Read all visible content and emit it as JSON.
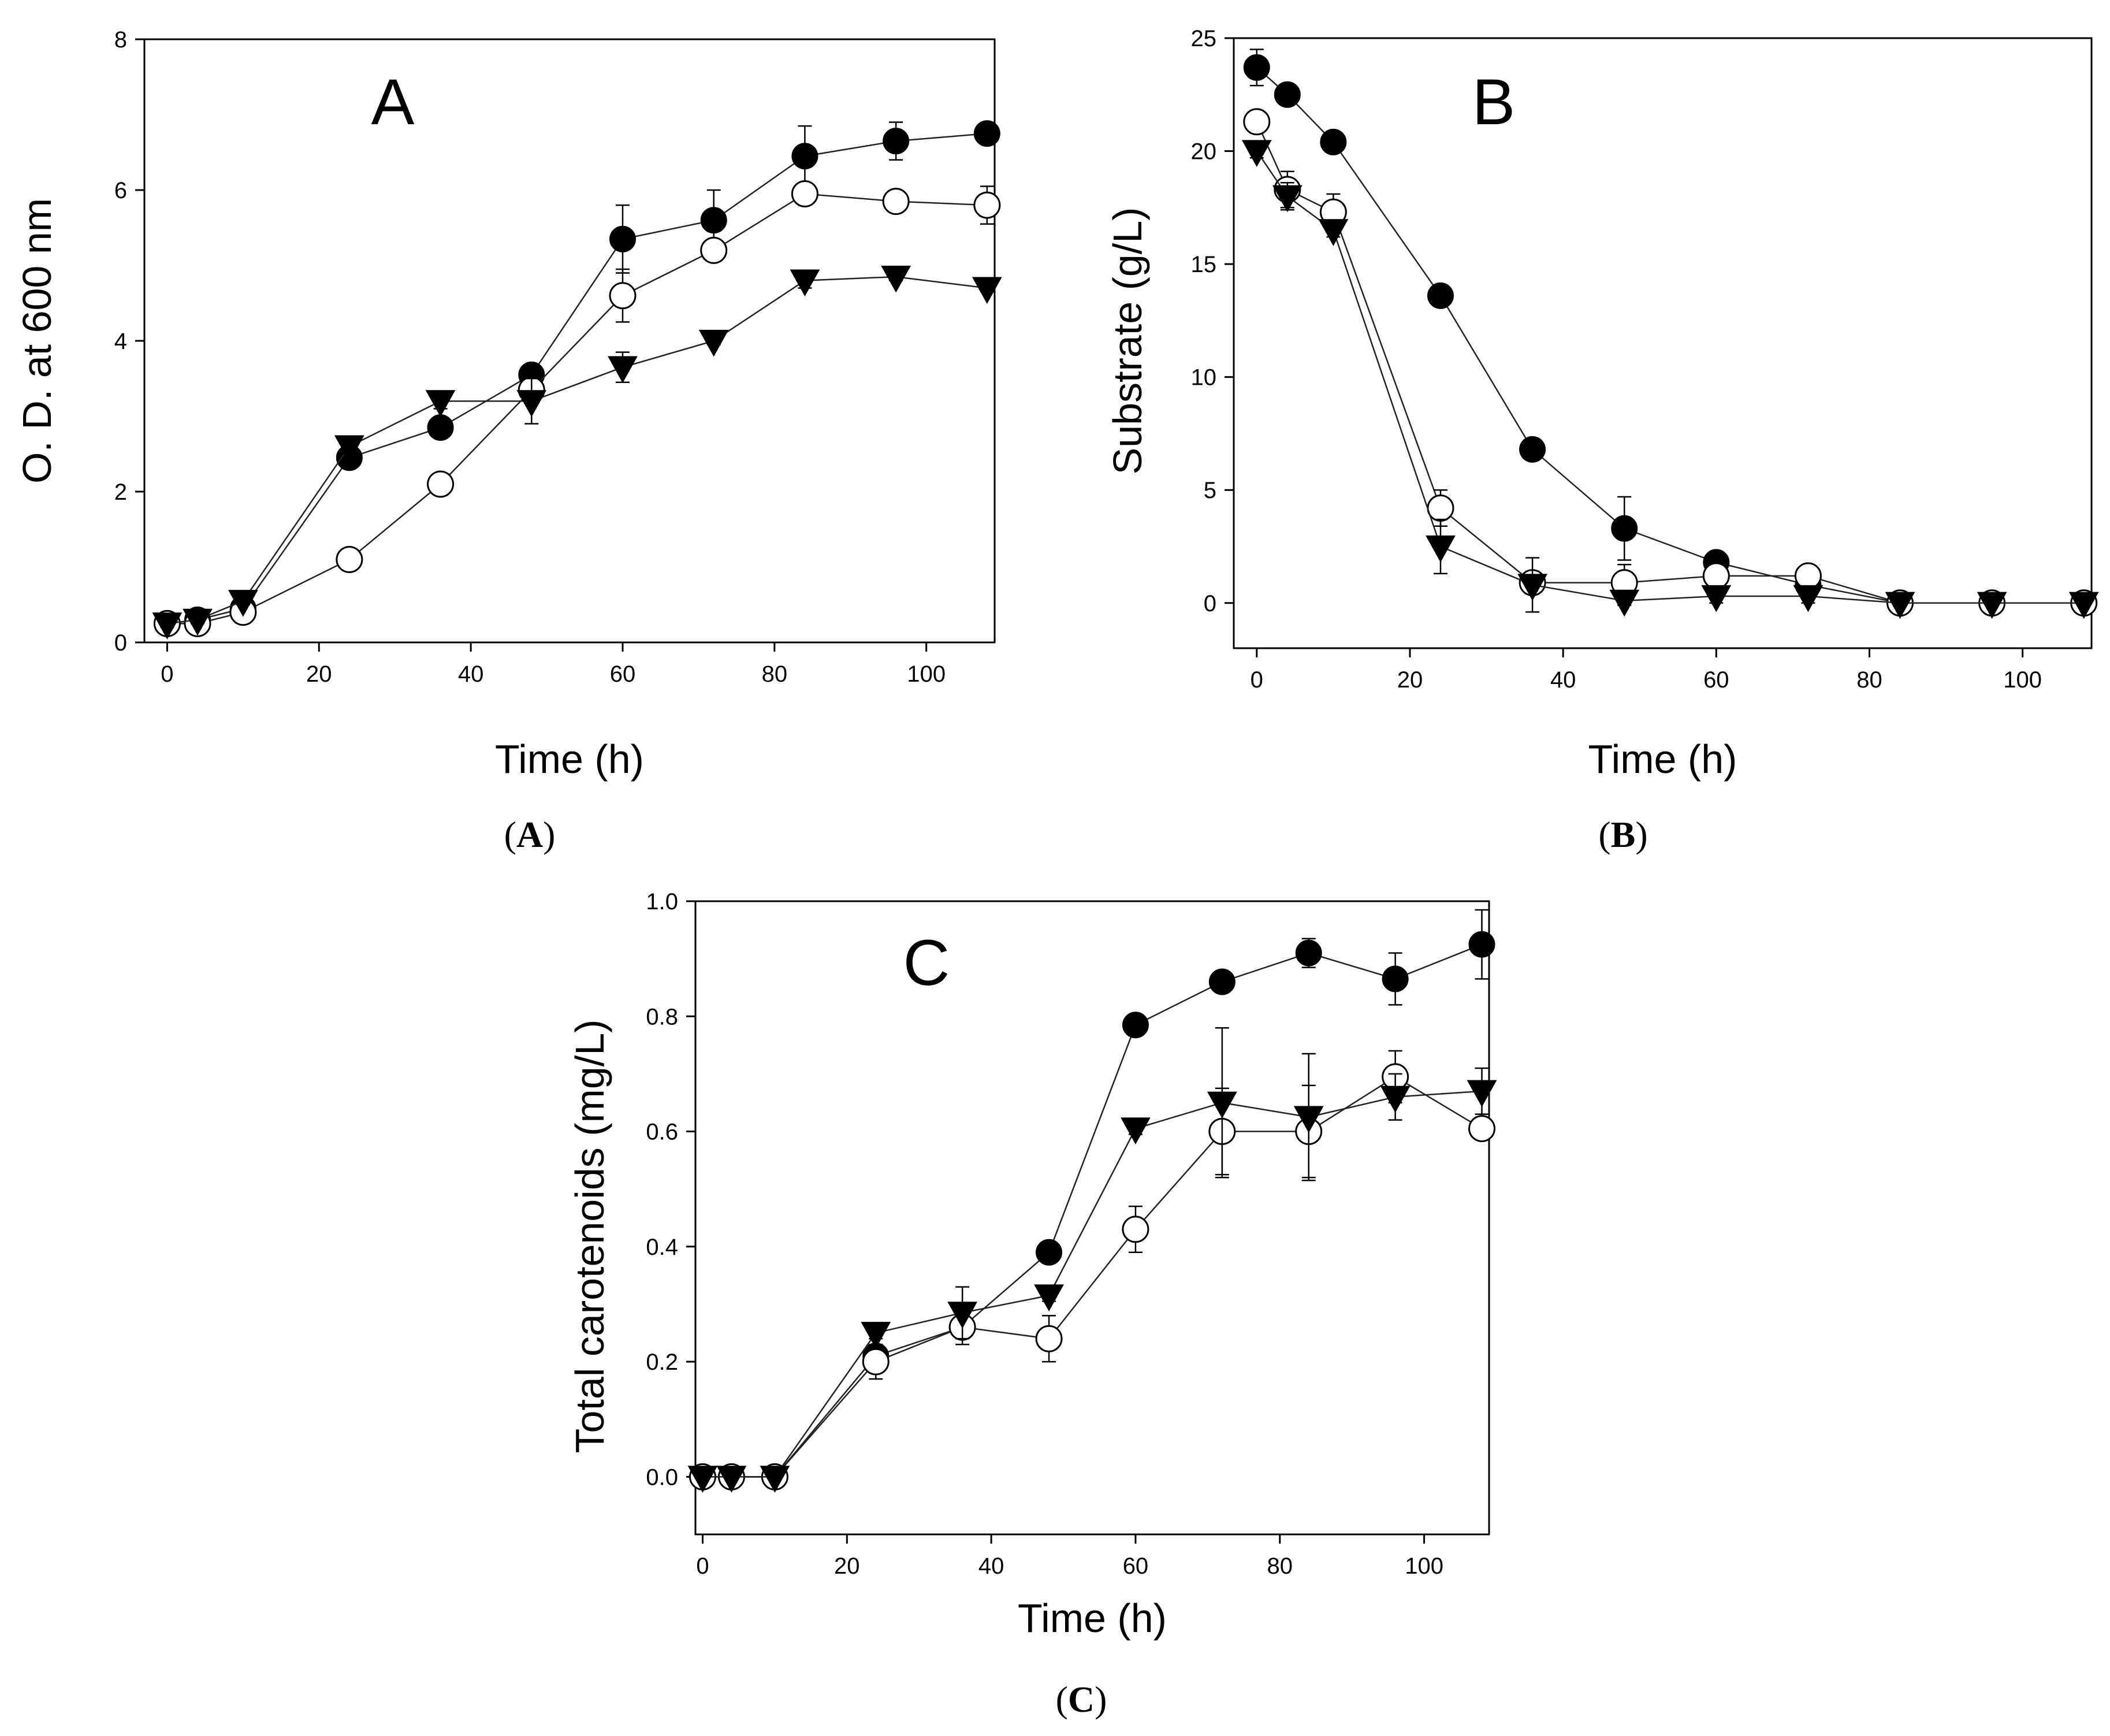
{
  "captions": {
    "a": {
      "open": "(",
      "letter": "A",
      "close": ")"
    },
    "b": {
      "open": "(",
      "letter": "B",
      "close": ")"
    },
    "c": {
      "open": "(",
      "letter": "C",
      "close": ")"
    }
  },
  "chart_data": [
    {
      "type": "scatter",
      "panel_label": "A",
      "xlabel": "Time (h)",
      "ylabel": "O. D. at 600 nm",
      "xlim": [
        -3,
        109
      ],
      "ylim": [
        0,
        8
      ],
      "xticks": [
        0,
        20,
        40,
        60,
        80,
        100
      ],
      "yticks": [
        0,
        2,
        4,
        6,
        8
      ],
      "ytick_labels": [
        "0",
        "2",
        "4",
        "6",
        "8"
      ],
      "series": [
        {
          "marker": "filled-circle",
          "x": [
            0,
            4,
            10,
            24,
            36,
            48,
            60,
            72,
            84,
            96,
            108
          ],
          "y": [
            0.25,
            0.3,
            0.45,
            2.45,
            2.85,
            3.55,
            5.35,
            5.6,
            6.45,
            6.65,
            6.75
          ],
          "err": [
            0.05,
            0.05,
            0.05,
            0.1,
            0.1,
            0.1,
            0.45,
            0.4,
            0.4,
            0.25,
            0.1
          ]
        },
        {
          "marker": "open-circle",
          "x": [
            0,
            4,
            10,
            24,
            36,
            48,
            60,
            72,
            84,
            96,
            108
          ],
          "y": [
            0.25,
            0.25,
            0.4,
            1.1,
            2.1,
            3.35,
            4.6,
            5.2,
            5.95,
            5.85,
            5.8
          ],
          "err": [
            0.05,
            0.05,
            0.05,
            0.05,
            0.1,
            0.15,
            0.35,
            0.1,
            0.1,
            0.1,
            0.25
          ]
        },
        {
          "marker": "filled-down-triangle",
          "x": [
            0,
            4,
            10,
            24,
            36,
            48,
            60,
            72,
            84,
            96,
            108
          ],
          "y": [
            0.25,
            0.3,
            0.55,
            2.6,
            3.2,
            3.2,
            3.65,
            4.0,
            4.8,
            4.85,
            4.7
          ],
          "err": [
            0.05,
            0.05,
            0.05,
            0.1,
            0.1,
            0.3,
            0.2,
            0.05,
            0.1,
            0.05,
            0.05
          ]
        }
      ]
    },
    {
      "type": "scatter",
      "panel_label": "B",
      "xlabel": "Time (h)",
      "ylabel": "Substrate (g/L)",
      "xlim": [
        -3,
        109
      ],
      "ylim": [
        -2,
        25
      ],
      "xticks": [
        0,
        20,
        40,
        60,
        80,
        100
      ],
      "yticks": [
        0,
        5,
        10,
        15,
        20,
        25
      ],
      "ytick_labels": [
        "0",
        "5",
        "10",
        "15",
        "20",
        "25"
      ],
      "series": [
        {
          "marker": "filled-circle",
          "x": [
            0,
            4,
            10,
            24,
            36,
            48,
            60,
            72,
            84,
            96,
            108
          ],
          "y": [
            23.7,
            22.5,
            20.4,
            13.6,
            6.8,
            3.3,
            1.8,
            0.8,
            0,
            0,
            0
          ],
          "err": [
            0.8,
            0.3,
            0.3,
            0.3,
            0.3,
            1.4,
            0.3,
            0.3,
            0.1,
            0.1,
            0.1
          ]
        },
        {
          "marker": "open-circle",
          "x": [
            0,
            4,
            10,
            24,
            36,
            48,
            60,
            72,
            84,
            96,
            108
          ],
          "y": [
            21.3,
            18.3,
            17.3,
            4.2,
            0.9,
            0.9,
            1.2,
            1.2,
            0,
            0,
            0
          ],
          "err": [
            0.5,
            0.8,
            0.8,
            0.8,
            0.5,
            0.8,
            0.3,
            0.3,
            0.1,
            0.1,
            0.1
          ]
        },
        {
          "marker": "filled-down-triangle",
          "x": [
            0,
            4,
            10,
            24,
            36,
            48,
            60,
            72,
            84,
            96,
            108
          ],
          "y": [
            20.0,
            18.0,
            16.5,
            2.5,
            0.8,
            0.1,
            0.3,
            0.3,
            0,
            0,
            0
          ],
          "err": [
            0.3,
            0.6,
            0.3,
            1.2,
            1.2,
            0.2,
            0.3,
            0.3,
            0.1,
            0.1,
            0.1
          ]
        }
      ]
    },
    {
      "type": "scatter",
      "panel_label": "C",
      "xlabel": "Time (h)",
      "ylabel": "Total carotenoids (mg/L)",
      "xlim": [
        -1,
        109
      ],
      "ylim": [
        -0.1,
        1.0
      ],
      "xticks": [
        0,
        20,
        40,
        60,
        80,
        100
      ],
      "yticks": [
        0,
        0.2,
        0.4,
        0.6,
        0.8,
        1.0
      ],
      "ytick_labels": [
        "0.0",
        "0.2",
        "0.4",
        "0.6",
        "0.8",
        "1.0"
      ],
      "series": [
        {
          "marker": "filled-circle",
          "x": [
            0,
            4,
            10,
            24,
            36,
            48,
            60,
            72,
            84,
            96,
            108
          ],
          "y": [
            0,
            0,
            0,
            0.21,
            0.26,
            0.39,
            0.785,
            0.86,
            0.91,
            0.865,
            0.925
          ],
          "err": [
            0,
            0,
            0,
            0.01,
            0.02,
            0.01,
            0.01,
            0.01,
            0.025,
            0.045,
            0.06
          ]
        },
        {
          "marker": "open-circle",
          "x": [
            0,
            4,
            10,
            24,
            36,
            48,
            60,
            72,
            84,
            96,
            108
          ],
          "y": [
            0,
            0,
            0,
            0.2,
            0.26,
            0.24,
            0.43,
            0.6,
            0.6,
            0.695,
            0.605
          ],
          "err": [
            0,
            0,
            0,
            0.03,
            0.03,
            0.04,
            0.04,
            0.075,
            0.08,
            0.045,
            0.01
          ]
        },
        {
          "marker": "filled-down-triangle",
          "x": [
            0,
            4,
            10,
            24,
            36,
            48,
            60,
            72,
            84,
            96,
            108
          ],
          "y": [
            0,
            0,
            0,
            0.25,
            0.285,
            0.315,
            0.605,
            0.65,
            0.625,
            0.66,
            0.67
          ],
          "err": [
            0,
            0,
            0,
            0.01,
            0.045,
            0.01,
            0.01,
            0.13,
            0.11,
            0.04,
            0.04
          ]
        }
      ]
    }
  ]
}
